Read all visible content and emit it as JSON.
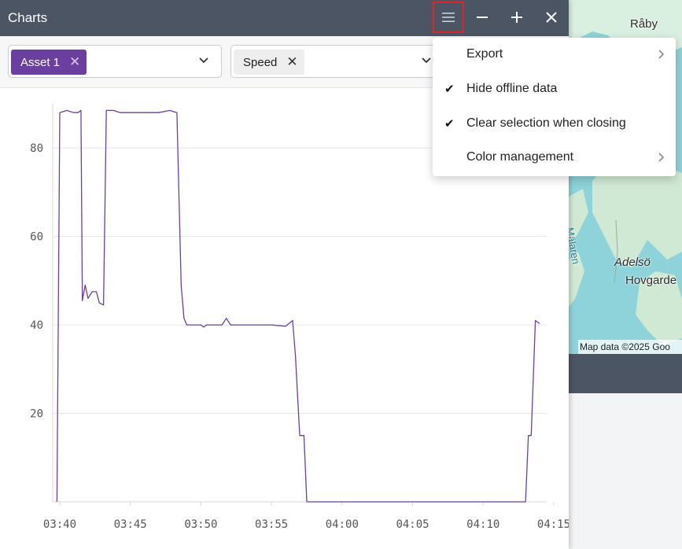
{
  "window": {
    "title": "Charts"
  },
  "titlebar": {
    "menu_icon": "hamburger-icon",
    "minimize_icon": "minus-icon",
    "add_icon": "plus-icon",
    "close_icon": "close-icon"
  },
  "filters": {
    "asset_chip": {
      "label": "Asset 1",
      "color": "#6b3fa0"
    },
    "metric_chip": {
      "label": "Speed",
      "color": "#eeeeee"
    }
  },
  "menu": {
    "items": [
      {
        "label": "Export",
        "checked": false,
        "submenu": true
      },
      {
        "label": "Hide offline data",
        "checked": true,
        "submenu": false
      },
      {
        "label": "Clear selection when closing",
        "checked": true,
        "submenu": false
      },
      {
        "label": "Color management",
        "checked": false,
        "submenu": true
      }
    ]
  },
  "map": {
    "labels": [
      "Råby",
      "Adelsö",
      "Hovgarde",
      "Mälaren"
    ],
    "attribution": "Map data ©2025 Goo"
  },
  "chart_data": {
    "type": "line",
    "color": "#6b3fa0",
    "xlabel": "",
    "ylabel": "",
    "ylim": [
      0,
      90
    ],
    "xlim": [
      "03:39.5",
      "04:14.5"
    ],
    "yticks": [
      20,
      40,
      60,
      80
    ],
    "xticks": [
      "03:40",
      "03:45",
      "03:50",
      "03:55",
      "04:00",
      "04:05",
      "04:10",
      "04:15"
    ],
    "grid": true,
    "series": [
      {
        "name": "",
        "points": [
          [
            "03:39.8",
            0
          ],
          [
            "03:40.0",
            88
          ],
          [
            "03:40.5",
            88.5
          ],
          [
            "03:41.0",
            88
          ],
          [
            "03:41.3",
            88
          ],
          [
            "03:41.5",
            88.5
          ],
          [
            "03:41.6",
            45.5
          ],
          [
            "03:41.8",
            49
          ],
          [
            "03:42.0",
            46
          ],
          [
            "03:42.3",
            47.5
          ],
          [
            "03:42.6",
            47.5
          ],
          [
            "03:42.8",
            45
          ],
          [
            "03:43.1",
            44.5
          ],
          [
            "03:43.3",
            88.5
          ],
          [
            "03:43.8",
            88.5
          ],
          [
            "03:44.3",
            88
          ],
          [
            "03:45.0",
            88
          ],
          [
            "03:46.0",
            88
          ],
          [
            "03:47.0",
            88
          ],
          [
            "03:47.8",
            88.5
          ],
          [
            "03:48.3",
            88
          ],
          [
            "03:48.6",
            49
          ],
          [
            "03:48.8",
            41.5
          ],
          [
            "03:49.0",
            40
          ],
          [
            "03:49.6",
            40
          ],
          [
            "03:50.0",
            40
          ],
          [
            "03:50.2",
            39.5
          ],
          [
            "03:50.4",
            40
          ],
          [
            "03:51.0",
            40
          ],
          [
            "03:51.5",
            40
          ],
          [
            "03:51.8",
            41.5
          ],
          [
            "03:52.1",
            40
          ],
          [
            "03:53.0",
            40
          ],
          [
            "03:54.0",
            40
          ],
          [
            "03:55.0",
            40
          ],
          [
            "03:56.0",
            39.7
          ],
          [
            "03:56.5",
            41
          ],
          [
            "03:56.7",
            33
          ],
          [
            "03:57.0",
            15
          ],
          [
            "03:57.3",
            15
          ],
          [
            "03:57.5",
            0
          ],
          [
            "04:13.0",
            0
          ],
          [
            "04:13.2",
            15
          ],
          [
            "04:13.4",
            15
          ],
          [
            "04:13.7",
            41
          ],
          [
            "04:14.0",
            40.3
          ]
        ]
      }
    ]
  }
}
